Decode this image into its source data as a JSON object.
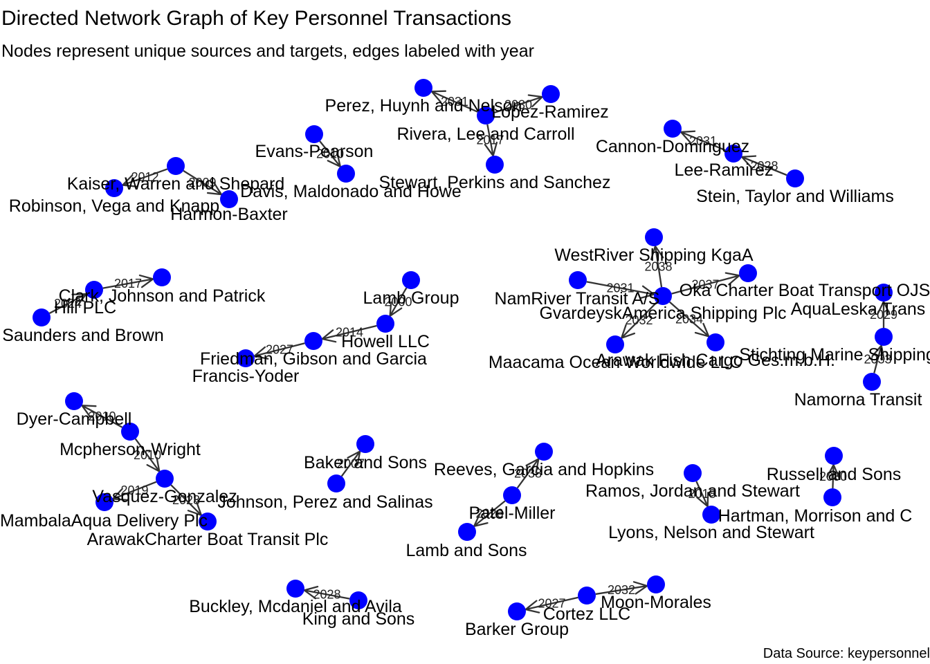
{
  "header": {
    "title": "Directed Network Graph of Key Personnel Transactions",
    "subtitle": "Nodes represent unique sources and targets, edges labeled with year"
  },
  "footer": {
    "caption": "Data Source: keypersonnel"
  },
  "colors": {
    "node": "#0000ff",
    "edge": "#333333",
    "text": "#000000",
    "background": "#ffffff"
  },
  "chart_data": {
    "type": "network",
    "directed": true,
    "nodes": [
      "Perez, Huynh and Nelson",
      "Lopez-Ramirez",
      "Rivera, Lee and Carroll",
      "Stewart, Perkins and Sanchez",
      "Evans-Pearson",
      "Davis, Maldonado and Howe",
      "Kaiser, Warren and Shepard",
      "Robinson, Vega and Knapp",
      "Harmon-Baxter",
      "Cannon-Dominguez",
      "Lee-Ramirez",
      "Stein, Taylor and Williams",
      "Clark, Johnson and Patrick",
      "Hill PLC",
      "Saunders and Brown",
      "Lamb Group",
      "Howell LLC",
      "Friedman, Gibson and Garcia",
      "Francis-Yoder",
      "WestRiver Shipping KgaA",
      "NamRiver Transit A/S",
      "Oka Charter Boat Transport OJSC",
      "GvardeyskAmerica Shipping Plc",
      "Maacama Ocean Worldwide LLC",
      "Arawak Fish Cargo Ges.m.b.H.",
      "AquaLeska Trans",
      "Stichting Marine Shipping",
      "Namorna Transit",
      "Dyer-Campbell",
      "Mcpherson-Wright",
      "Vasquez-Gonzalez",
      "Johnson, Perez and Salinas",
      "MambalaAqua Delivery Plc",
      "ArawakCharter Boat Transit Plc",
      "Baker and Sons",
      "Reeves, Garcia and Hopkins",
      "Patel-Miller",
      "Lamb and Sons",
      "Ramos, Jordan and Stewart",
      "Lyons, Nelson and Stewart",
      "Russell and Sons",
      "Hartman, Morrison and C",
      "Buckley, Mcdaniel and Avila",
      "King and Sons",
      "Cortez LLC",
      "Barker Group",
      "Moon-Morales"
    ],
    "edges": [
      {
        "source": "Lopez-Ramirez",
        "target": "Perez, Huynh and Nelson",
        "year": "2031"
      },
      {
        "source": "Lopez-Ramirez",
        "target": "Rivera, Lee and Carroll",
        "year": "2030"
      },
      {
        "source": "Lopez-Ramirez",
        "target": "Stewart, Perkins and Sanchez",
        "year": "2017"
      },
      {
        "source": "Evans-Pearson",
        "target": "Davis, Maldonado and Howe",
        "year": "2010"
      },
      {
        "source": "Kaiser, Warren and Shepard",
        "target": "Robinson, Vega and Knapp",
        "year": "2012"
      },
      {
        "source": "Kaiser, Warren and Shepard",
        "target": "Harmon-Baxter",
        "year": "2009"
      },
      {
        "source": "Lee-Ramirez",
        "target": "Cannon-Dominguez",
        "year": "2031"
      },
      {
        "source": "Stein, Taylor and Williams",
        "target": "Lee-Ramirez",
        "year": "2028"
      },
      {
        "source": "Hill PLC",
        "target": "Clark, Johnson and Patrick",
        "year": "2017"
      },
      {
        "source": "Saunders and Brown",
        "target": "Hill PLC",
        "year": "2024"
      },
      {
        "source": "Lamb Group",
        "target": "Howell LLC",
        "year": "2000"
      },
      {
        "source": "Howell LLC",
        "target": "Friedman, Gibson and Garcia",
        "year": "2014"
      },
      {
        "source": "Friedman, Gibson and Garcia",
        "target": "Francis-Yoder",
        "year": "2027"
      },
      {
        "source": "NamRiver Transit A/S",
        "target": "WestRiver Shipping KgaA",
        "year": "2038"
      },
      {
        "source": "NamRiver Transit A/S",
        "target": "Oka Charter Boat Transport OJSC",
        "year": "2037"
      },
      {
        "source": "GvardeyskAmerica Shipping Plc",
        "target": "NamRiver Transit A/S",
        "year": "2031"
      },
      {
        "source": "NamRiver Transit A/S",
        "target": "Maacama Ocean Worldwide LLC",
        "year": "2032"
      },
      {
        "source": "NamRiver Transit A/S",
        "target": "Arawak Fish Cargo Ges.m.b.H.",
        "year": "2034"
      },
      {
        "source": "Stichting Marine Shipping",
        "target": "AquaLeska Trans",
        "year": "2029"
      },
      {
        "source": "Namorna Transit",
        "target": "Stichting Marine Shipping",
        "year": "2033"
      },
      {
        "source": "Mcpherson-Wright",
        "target": "Dyer-Campbell",
        "year": "2010"
      },
      {
        "source": "Mcpherson-Wright",
        "target": "Vasquez-Gonzalez",
        "year": "2010"
      },
      {
        "source": "Vasquez-Gonzalez",
        "target": "MambalaAqua Delivery Plc",
        "year": "2019"
      },
      {
        "source": "Vasquez-Gonzalez",
        "target": "ArawakCharter Boat Transit Plc",
        "year": "2023"
      },
      {
        "source": "Johnson, Perez and Salinas",
        "target": "Baker and Sons",
        "year": "2007"
      },
      {
        "source": "Patel-Miller",
        "target": "Reeves, Garcia and Hopkins",
        "year": "2038"
      },
      {
        "source": "Patel-Miller",
        "target": "Lamb and Sons",
        "year": "2026"
      },
      {
        "source": "Ramos, Jordan and Stewart",
        "target": "Lyons, Nelson and Stewart",
        "year": "2018"
      },
      {
        "source": "Hartman, Morrison and C",
        "target": "Russell and Sons",
        "year": "2030"
      },
      {
        "source": "King and Sons",
        "target": "Buckley, Mcdaniel and Avila",
        "year": "2028"
      },
      {
        "source": "Cortez LLC",
        "target": "Barker Group",
        "year": "2027"
      },
      {
        "source": "Cortez LLC",
        "target": "Moon-Morales",
        "year": "2032"
      }
    ]
  }
}
